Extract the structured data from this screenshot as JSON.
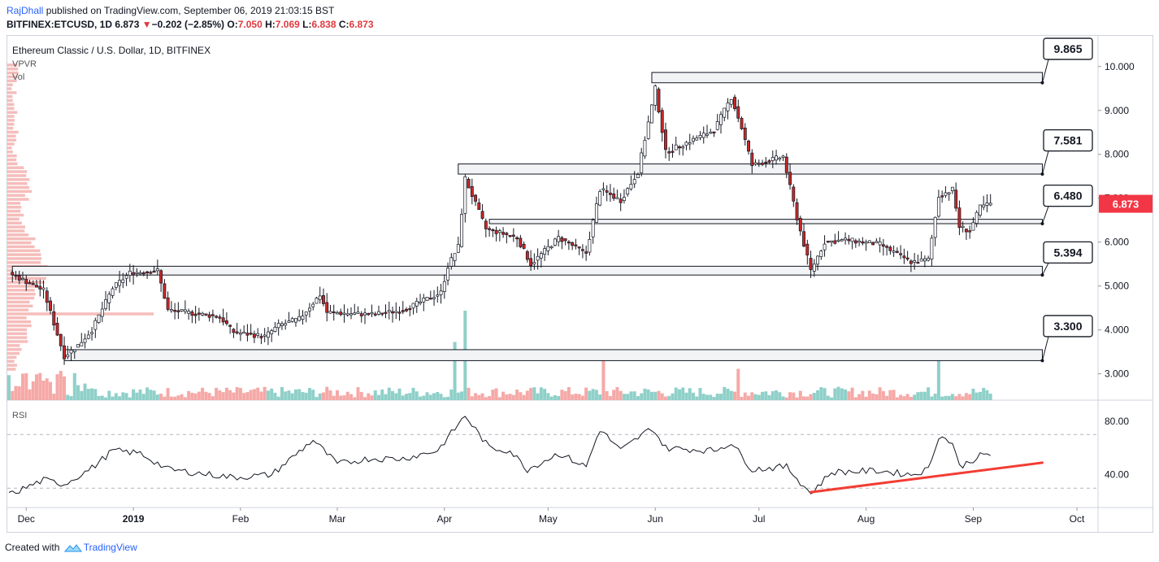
{
  "header": {
    "publisher": "RajDhall",
    "published_text": " published on TradingView.com, September 06, 2019 21:03:15 BST",
    "symbol_line": "BITFINEX:ETCUSD, 1D",
    "last": "6.873",
    "change_icon": "triangle-down-icon",
    "change": "−0.202 (−2.85%)",
    "ohlc": {
      "o_label": "O:",
      "o": "7.050",
      "h_label": "H:",
      "h": "7.069",
      "l_label": "L:",
      "l": "6.838",
      "c_label": "C:",
      "c": "6.873"
    }
  },
  "legend": {
    "title": "Ethereum Classic / U.S. Dollar, 1D, BITFINEX",
    "vpvr": "VPVR",
    "vol": "Vol",
    "rsi": "RSI"
  },
  "footer": {
    "created_with": "Created with",
    "brand": "TradingView",
    "logo_icon": "tradingview-logo-icon"
  },
  "colors": {
    "up": "#26a69a",
    "down": "#ef5350",
    "candle_body_down": "#c62828",
    "vol_up": "#8fd0c9",
    "vol_down": "#f5a9a7",
    "vpvr": "#f4b6b4",
    "box_fill": "#f2f3f5",
    "rsi_line": "#131722",
    "trendline": "#f23d34",
    "price_tag": "#f23645"
  },
  "chart_data": {
    "type": "candlestick",
    "title": "Ethereum Classic / U.S. Dollar, 1D, BITFINEX",
    "price_axis": {
      "ticks": [
        "3.000",
        "4.000",
        "5.000",
        "6.000",
        "7.000",
        "8.000",
        "9.000",
        "10.000"
      ],
      "range": [
        2.4,
        10.7
      ]
    },
    "time_axis": {
      "labels": [
        "Dec",
        "2019",
        "Feb",
        "Mar",
        "Apr",
        "May",
        "Jun",
        "Jul",
        "Aug",
        "Sep",
        "Oct"
      ]
    },
    "last_price_tag": "6.873",
    "levels": [
      {
        "label": "9.865",
        "low": 9.63,
        "high": 9.865,
        "from": "2019-05-31",
        "to": "2019-09-21"
      },
      {
        "label": "7.581",
        "low": 7.55,
        "high": 7.78,
        "from": "2019-04-05",
        "to": "2019-09-21"
      },
      {
        "label": "6.480",
        "low": 6.42,
        "high": 6.52,
        "from": "2019-04-14",
        "to": "2019-09-21"
      },
      {
        "label": "5.394",
        "low": 5.25,
        "high": 5.45,
        "from": "2018-11-27",
        "to": "2019-09-21"
      },
      {
        "label": "3.300",
        "low": 3.3,
        "high": 3.55,
        "from": "2018-12-12",
        "to": "2019-09-21"
      }
    ],
    "close_keypoints": [
      [
        "2018-11-26",
        5.3
      ],
      [
        "2018-12-06",
        4.9
      ],
      [
        "2018-12-12",
        3.4
      ],
      [
        "2018-12-16",
        3.65
      ],
      [
        "2018-12-20",
        4.0
      ],
      [
        "2018-12-26",
        4.95
      ],
      [
        "2018-12-31",
        5.3
      ],
      [
        "2019-01-08",
        5.35
      ],
      [
        "2019-01-11",
        4.45
      ],
      [
        "2019-01-26",
        4.3
      ],
      [
        "2019-01-30",
        3.95
      ],
      [
        "2019-02-08",
        3.85
      ],
      [
        "2019-02-12",
        4.1
      ],
      [
        "2019-02-18",
        4.25
      ],
      [
        "2019-02-24",
        4.8
      ],
      [
        "2019-02-26",
        4.4
      ],
      [
        "2019-03-11",
        4.35
      ],
      [
        "2019-03-20",
        4.45
      ],
      [
        "2019-03-31",
        4.85
      ],
      [
        "2019-04-02",
        5.45
      ],
      [
        "2019-04-05",
        5.9
      ],
      [
        "2019-04-07",
        7.45
      ],
      [
        "2019-04-13",
        6.3
      ],
      [
        "2019-04-22",
        6.1
      ],
      [
        "2019-04-26",
        5.5
      ],
      [
        "2019-05-04",
        6.1
      ],
      [
        "2019-05-12",
        5.75
      ],
      [
        "2019-05-16",
        7.2
      ],
      [
        "2019-05-22",
        6.95
      ],
      [
        "2019-05-27",
        7.6
      ],
      [
        "2019-05-31",
        9.1
      ],
      [
        "2019-06-01",
        9.5
      ],
      [
        "2019-06-04",
        8.05
      ],
      [
        "2019-06-11",
        8.3
      ],
      [
        "2019-06-18",
        8.55
      ],
      [
        "2019-06-23",
        9.3
      ],
      [
        "2019-06-26",
        8.6
      ],
      [
        "2019-06-29",
        7.75
      ],
      [
        "2019-07-08",
        7.95
      ],
      [
        "2019-07-12",
        6.55
      ],
      [
        "2019-07-16",
        5.35
      ],
      [
        "2019-07-20",
        6.0
      ],
      [
        "2019-07-26",
        6.05
      ],
      [
        "2019-08-05",
        5.95
      ],
      [
        "2019-08-14",
        5.55
      ],
      [
        "2019-08-19",
        5.6
      ],
      [
        "2019-08-22",
        7.05
      ],
      [
        "2019-08-26",
        7.2
      ],
      [
        "2019-08-28",
        6.35
      ],
      [
        "2019-08-31",
        6.25
      ],
      [
        "2019-09-03",
        6.8
      ],
      [
        "2019-09-06",
        6.873
      ]
    ],
    "volume_spikes": [
      {
        "date": "2019-04-04",
        "rel": 0.65
      },
      {
        "date": "2019-04-07",
        "rel": 1.0
      },
      {
        "date": "2019-05-17",
        "rel": 0.47
      },
      {
        "date": "2019-06-25",
        "rel": 0.35
      },
      {
        "date": "2019-08-22",
        "rel": 0.55
      }
    ],
    "rsi": {
      "axis_ticks": [
        "40.00",
        "80.00"
      ],
      "range": [
        18,
        92
      ],
      "bands": [
        30,
        70
      ],
      "keypoints": [
        [
          "2018-11-26",
          25
        ],
        [
          "2018-12-06",
          36
        ],
        [
          "2018-12-12",
          33
        ],
        [
          "2018-12-20",
          45
        ],
        [
          "2018-12-26",
          58
        ],
        [
          "2019-01-03",
          56
        ],
        [
          "2019-01-11",
          44
        ],
        [
          "2019-01-30",
          38
        ],
        [
          "2019-02-10",
          40
        ],
        [
          "2019-02-22",
          66
        ],
        [
          "2019-03-01",
          48
        ],
        [
          "2019-03-10",
          52
        ],
        [
          "2019-03-20",
          52
        ],
        [
          "2019-03-30",
          58
        ],
        [
          "2019-04-07",
          84
        ],
        [
          "2019-04-14",
          60
        ],
        [
          "2019-04-20",
          58
        ],
        [
          "2019-04-25",
          44
        ],
        [
          "2019-05-04",
          56
        ],
        [
          "2019-05-12",
          46
        ],
        [
          "2019-05-16",
          74
        ],
        [
          "2019-05-22",
          58
        ],
        [
          "2019-05-31",
          75
        ],
        [
          "2019-06-04",
          60
        ],
        [
          "2019-06-18",
          58
        ],
        [
          "2019-06-23",
          64
        ],
        [
          "2019-06-29",
          44
        ],
        [
          "2019-07-09",
          46
        ],
        [
          "2019-07-16",
          26
        ],
        [
          "2019-07-22",
          42
        ],
        [
          "2019-08-05",
          43
        ],
        [
          "2019-08-14",
          40
        ],
        [
          "2019-08-19",
          44
        ],
        [
          "2019-08-22",
          69
        ],
        [
          "2019-08-26",
          64
        ],
        [
          "2019-08-28",
          46
        ],
        [
          "2019-09-03",
          54
        ],
        [
          "2019-09-06",
          55
        ]
      ],
      "trendline": [
        [
          "2019-07-16",
          27
        ],
        [
          "2019-09-21",
          49
        ]
      ]
    }
  }
}
